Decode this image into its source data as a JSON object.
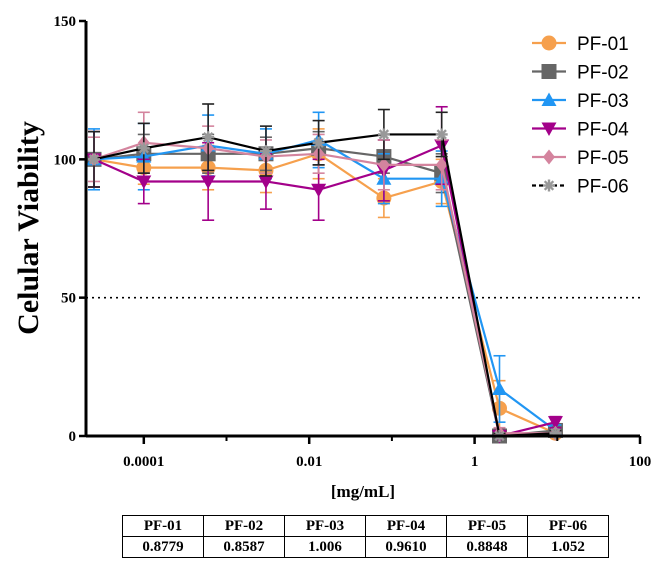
{
  "chart_data": {
    "type": "line",
    "title": "",
    "xlabel": "[mg/mL]",
    "ylabel": "Celular Viability",
    "xscale": "log",
    "xlim": [
      2e-05,
      100
    ],
    "ylim": [
      0,
      150
    ],
    "x_ticks": [
      {
        "value": 0.0001,
        "label": "0.0001"
      },
      {
        "value": 0.01,
        "label": "0.01"
      },
      {
        "value": 1,
        "label": "1"
      },
      {
        "value": 100,
        "label": "100"
      }
    ],
    "y_ticks": [
      {
        "value": 0,
        "label": "0"
      },
      {
        "value": 50,
        "label": "50"
      },
      {
        "value": 100,
        "label": "100"
      },
      {
        "value": 150,
        "label": "150"
      }
    ],
    "reference_line": {
      "y": 50,
      "style": "dotted"
    },
    "grid": false,
    "legend_position": "top-right",
    "x": [
      2.5e-05,
      0.0001,
      0.0006,
      0.003,
      0.013,
      0.08,
      0.4,
      2,
      9.5
    ],
    "series": [
      {
        "name": "PF-01",
        "color": "#F6A04D",
        "marker": "circle",
        "values": [
          100,
          97,
          97,
          96,
          102,
          86,
          92,
          10,
          1
        ],
        "errors": [
          10,
          6,
          8,
          8,
          9,
          7,
          8,
          10,
          1
        ]
      },
      {
        "name": "PF-02",
        "color": "#666666",
        "marker": "square",
        "values": [
          100,
          102,
          102,
          102,
          104,
          101,
          95,
          0,
          2
        ],
        "errors": [
          10,
          7,
          7,
          6,
          6,
          6,
          7,
          2,
          2
        ]
      },
      {
        "name": "PF-03",
        "color": "#2196F3",
        "marker": "triangle-up",
        "values": [
          100,
          101,
          105,
          102,
          107,
          93,
          93,
          17,
          2
        ],
        "errors": [
          11,
          12,
          11,
          9,
          10,
          9,
          10,
          12,
          2
        ]
      },
      {
        "name": "PF-04",
        "color": "#A3008A",
        "marker": "triangle-down",
        "values": [
          100,
          92,
          92,
          92,
          89,
          96,
          105,
          0,
          5
        ],
        "errors": [
          10,
          8,
          14,
          10,
          11,
          11,
          14,
          2,
          2
        ]
      },
      {
        "name": "PF-05",
        "color": "#D4849E",
        "marker": "diamond",
        "values": [
          100,
          106,
          104,
          101,
          102,
          98,
          98,
          1,
          1
        ],
        "errors": [
          8,
          11,
          8,
          6,
          7,
          9,
          9,
          2,
          1
        ]
      },
      {
        "name": "PF-06",
        "color": "#000000",
        "marker": "asterisk",
        "dashed_legend": true,
        "values": [
          100,
          104,
          108,
          103,
          106,
          109,
          109,
          0,
          1
        ],
        "errors": [
          10,
          9,
          12,
          9,
          8,
          9,
          8,
          1,
          1
        ]
      }
    ]
  },
  "ic50_table": {
    "headers": [
      "PF-01",
      "PF-02",
      "PF-03",
      "PF-04",
      "PF-05",
      "PF-06"
    ],
    "values": [
      "0.8779",
      "0.8587",
      "1.006",
      "0.9610",
      "0.8848",
      "1.052"
    ]
  }
}
